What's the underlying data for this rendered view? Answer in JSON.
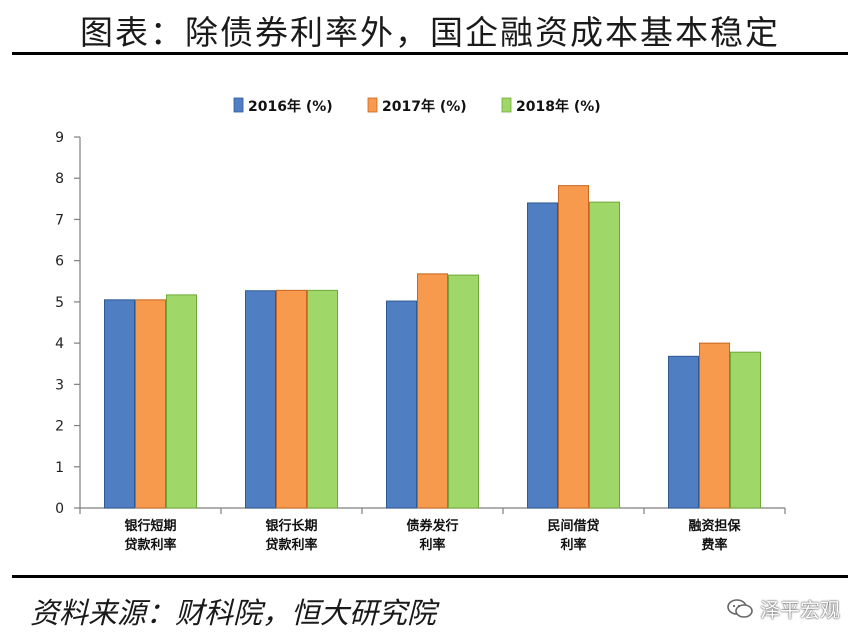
{
  "title": "图表：除债券利率外，国企融资成本基本稳定",
  "source": "资料来源：财科院，恒大研究院",
  "watermark": "泽平宏观",
  "colors": {
    "series_fill": [
      "#4f7ec2",
      "#f79a4e",
      "#9fd868"
    ],
    "series_stroke": [
      "#2e5a94",
      "#c9651f",
      "#6fa83a"
    ],
    "axis": "#7f7f7f"
  },
  "chart_data": {
    "type": "bar",
    "categories": [
      [
        "银行短期",
        "贷款利率"
      ],
      [
        "银行长期",
        "贷款利率"
      ],
      [
        "债券发行",
        "利率"
      ],
      [
        "民间借贷",
        "利率"
      ],
      [
        "融资担保",
        "费率"
      ]
    ],
    "series": [
      {
        "name": "2016年 (%)",
        "values": [
          5.05,
          5.27,
          5.02,
          7.4,
          3.68
        ]
      },
      {
        "name": "2017年 (%)",
        "values": [
          5.05,
          5.28,
          5.68,
          7.82,
          4.0
        ]
      },
      {
        "name": "2018年 (%)",
        "values": [
          5.17,
          5.28,
          5.65,
          7.42,
          3.78
        ]
      }
    ],
    "yticks": [
      "0",
      "1",
      "2",
      "3",
      "4",
      "5",
      "6",
      "7",
      "8",
      "9"
    ],
    "ylim": [
      0,
      9
    ],
    "legend_position": "top",
    "grid": false
  }
}
